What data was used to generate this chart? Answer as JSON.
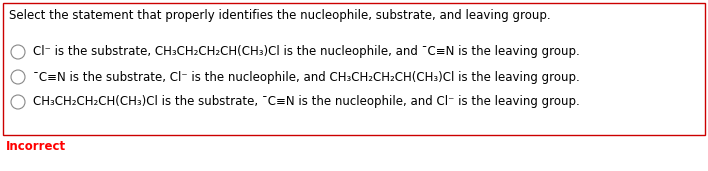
{
  "title": "Select the statement that properly identifies the nucleophile, substrate, and leaving group.",
  "line1": "Cl⁻ is the substrate, CH₃CH₂CH₂CH(CH₃)Cl is the nucleophile, and ¯C≡N is the leaving group.",
  "line2": "¯C≡N is the substrate, Cl⁻ is the nucleophile, and CH₃CH₂CH₂CH(CH₃)Cl is the leaving group.",
  "line3": "CH₃CH₂CH₂CH(CH₃)Cl is the substrate, ¯C≡N is the nucleophile, and Cl⁻ is the leaving group.",
  "feedback": "Incorrect",
  "feedback_color": "#ff0000",
  "border_color": "#cc0000",
  "bg_color": "#ffffff",
  "text_color": "#000000",
  "font_size": 8.5,
  "title_font_size": 8.5
}
